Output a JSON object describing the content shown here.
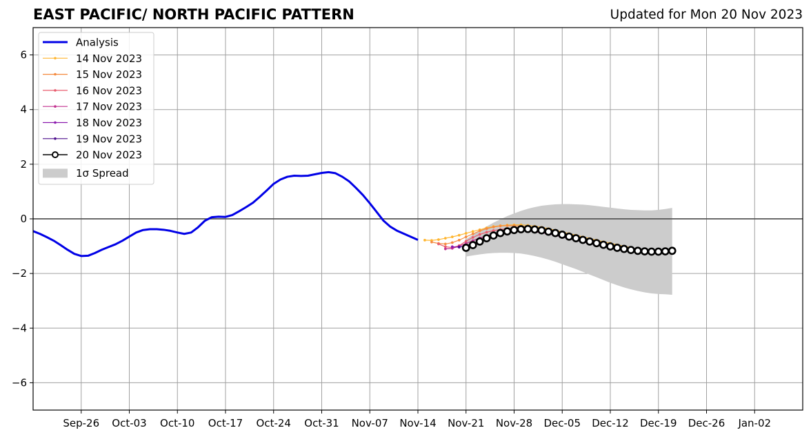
{
  "chart_data": {
    "type": "line",
    "title": "EAST PACIFIC/ NORTH PACIFIC PATTERN",
    "subtitle": "Updated for Mon 20 Nov 2023",
    "xlabel": "",
    "ylabel": "",
    "x_range": [
      "2023-09-19",
      "2024-01-09"
    ],
    "ylim": [
      -7,
      7
    ],
    "y_ticks": [
      -6,
      -4,
      -2,
      0,
      2,
      4,
      6
    ],
    "y_tick_labels": [
      "−6",
      "−4",
      "−2",
      "0",
      "2",
      "4",
      "6"
    ],
    "x_ticks": [
      "2023-09-26",
      "2023-10-03",
      "2023-10-10",
      "2023-10-17",
      "2023-10-24",
      "2023-10-31",
      "2023-11-07",
      "2023-11-14",
      "2023-11-21",
      "2023-11-28",
      "2023-12-05",
      "2023-12-12",
      "2023-12-19",
      "2023-12-26",
      "2024-01-02"
    ],
    "x_tick_labels": [
      "Sep-26",
      "Oct-03",
      "Oct-10",
      "Oct-17",
      "Oct-24",
      "Oct-31",
      "Nov-07",
      "Nov-14",
      "Nov-21",
      "Nov-28",
      "Dec-05",
      "Dec-12",
      "Dec-19",
      "Dec-26",
      "Jan-02"
    ],
    "grid": true,
    "legend_position": "upper-left",
    "series": [
      {
        "name": "Analysis",
        "color": "#0000e6",
        "style": "line",
        "start": "2023-09-19",
        "values": [
          -0.45,
          -0.55,
          -0.67,
          -0.8,
          -0.96,
          -1.13,
          -1.28,
          -1.36,
          -1.35,
          -1.25,
          -1.13,
          -1.03,
          -0.93,
          -0.8,
          -0.65,
          -0.5,
          -0.41,
          -0.38,
          -0.38,
          -0.4,
          -0.44,
          -0.5,
          -0.55,
          -0.5,
          -0.31,
          -0.07,
          0.06,
          0.08,
          0.07,
          0.14,
          0.28,
          0.43,
          0.59,
          0.81,
          1.04,
          1.28,
          1.44,
          1.54,
          1.58,
          1.57,
          1.58,
          1.63,
          1.68,
          1.71,
          1.67,
          1.54,
          1.37,
          1.13,
          0.87,
          0.57,
          0.25,
          -0.07,
          -0.29,
          -0.44,
          -0.55,
          -0.66,
          -0.77
        ]
      },
      {
        "name": "14 Nov 2023",
        "color": "#ffb630",
        "style": "dots",
        "start": "2023-11-15",
        "values": [
          -0.78,
          -0.79,
          -0.76,
          -0.71,
          -0.66,
          -0.6,
          -0.53,
          -0.46,
          -0.4,
          -0.33,
          -0.28,
          -0.25,
          -0.23,
          -0.22,
          -0.22,
          -0.24,
          -0.27,
          -0.31,
          -0.36,
          -0.42,
          -0.48,
          -0.54,
          -0.6,
          -0.66,
          -0.72,
          -0.78,
          -0.84,
          -0.89,
          -0.95,
          -1.0,
          -1.05
        ]
      },
      {
        "name": "15 Nov 2023",
        "color": "#f58a3e",
        "style": "dots",
        "start": "2023-11-16",
        "values": [
          -0.85,
          -0.9,
          -0.92,
          -0.87,
          -0.78,
          -0.66,
          -0.55,
          -0.44,
          -0.36,
          -0.3,
          -0.26,
          -0.25,
          -0.25,
          -0.27,
          -0.3,
          -0.34,
          -0.39,
          -0.45,
          -0.51,
          -0.57,
          -0.63,
          -0.69,
          -0.75,
          -0.81,
          -0.86,
          -0.91,
          -0.96,
          -1.01,
          -1.05,
          -1.09
        ]
      },
      {
        "name": "16 Nov 2023",
        "color": "#e85c6e",
        "style": "dots",
        "start": "2023-11-17",
        "values": [
          -0.92,
          -1.02,
          -1.05,
          -0.98,
          -0.82,
          -0.68,
          -0.57,
          -0.49,
          -0.43,
          -0.39,
          -0.36,
          -0.35,
          -0.36,
          -0.38,
          -0.41,
          -0.46,
          -0.51,
          -0.57,
          -0.63,
          -0.69,
          -0.75,
          -0.81,
          -0.87,
          -0.92,
          -0.97,
          -1.02,
          -1.06,
          -1.1,
          -1.13
        ]
      },
      {
        "name": "17 Nov 2023",
        "color": "#c12f8e",
        "style": "dots",
        "start": "2023-11-18",
        "values": [
          -1.1,
          -1.08,
          -1.0,
          -0.9,
          -0.8,
          -0.7,
          -0.62,
          -0.55,
          -0.5,
          -0.46,
          -0.44,
          -0.43,
          -0.44,
          -0.47,
          -0.51,
          -0.55,
          -0.6,
          -0.66,
          -0.72,
          -0.78,
          -0.84,
          -0.9,
          -0.95,
          -1.0,
          -1.05,
          -1.09,
          -1.12,
          -1.15
        ]
      },
      {
        "name": "18 Nov 2023",
        "color": "#8a18ad",
        "style": "dots",
        "start": "2023-11-19",
        "values": [
          -1.02,
          -1.04,
          -0.98,
          -0.9,
          -0.8,
          -0.7,
          -0.61,
          -0.54,
          -0.49,
          -0.45,
          -0.43,
          -0.43,
          -0.45,
          -0.49,
          -0.54,
          -0.6,
          -0.66,
          -0.72,
          -0.78,
          -0.84,
          -0.9,
          -0.96,
          -1.01,
          -1.06,
          -1.1,
          -1.13,
          -1.15
        ]
      },
      {
        "name": "19 Nov 2023",
        "color": "#4b0c8c",
        "style": "dots",
        "start": "2023-11-20",
        "values": [
          -1.03,
          -1.0,
          -0.93,
          -0.84,
          -0.74,
          -0.65,
          -0.57,
          -0.51,
          -0.47,
          -0.44,
          -0.42,
          -0.42,
          -0.44,
          -0.48,
          -0.53,
          -0.59,
          -0.65,
          -0.72,
          -0.79,
          -0.86,
          -0.93,
          -0.99,
          -1.04,
          -1.09,
          -1.13,
          -1.16
        ]
      },
      {
        "name": "20 Nov 2023",
        "color": "#000000",
        "style": "circles",
        "start": "2023-11-21",
        "values": [
          -1.06,
          -0.96,
          -0.83,
          -0.71,
          -0.61,
          -0.52,
          -0.46,
          -0.41,
          -0.38,
          -0.37,
          -0.39,
          -0.42,
          -0.47,
          -0.52,
          -0.58,
          -0.65,
          -0.71,
          -0.77,
          -0.83,
          -0.89,
          -0.95,
          -1.01,
          -1.06,
          -1.1,
          -1.14,
          -1.17,
          -1.19,
          -1.2,
          -1.2,
          -1.19,
          -1.17
        ]
      }
    ],
    "spread": {
      "name": "1σ Spread",
      "color": "#cccccc",
      "start": "2023-11-21",
      "upper": [
        -0.75,
        -0.58,
        -0.42,
        -0.28,
        -0.14,
        -0.02,
        0.1,
        0.2,
        0.29,
        0.37,
        0.43,
        0.48,
        0.51,
        0.53,
        0.54,
        0.54,
        0.53,
        0.52,
        0.5,
        0.47,
        0.44,
        0.41,
        0.38,
        0.35,
        0.33,
        0.32,
        0.31,
        0.31,
        0.33,
        0.36,
        0.4
      ],
      "lower": [
        -1.38,
        -1.34,
        -1.3,
        -1.27,
        -1.25,
        -1.24,
        -1.24,
        -1.25,
        -1.27,
        -1.31,
        -1.36,
        -1.42,
        -1.49,
        -1.57,
        -1.66,
        -1.75,
        -1.84,
        -1.94,
        -2.04,
        -2.14,
        -2.24,
        -2.34,
        -2.43,
        -2.51,
        -2.58,
        -2.64,
        -2.69,
        -2.73,
        -2.75,
        -2.76,
        -2.78
      ]
    }
  }
}
